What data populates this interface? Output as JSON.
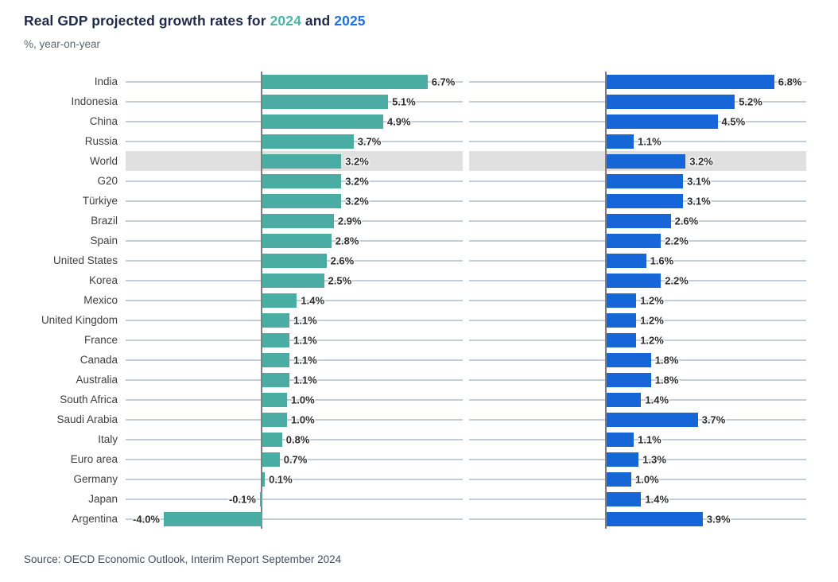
{
  "title": {
    "text_before": "Real GDP projected growth rates for ",
    "year_2024": "2024",
    "text_and": " and ",
    "year_2025": "2025"
  },
  "subtitle": "%, year-on-year",
  "source": "Source: OECD Economic Outlook, Interim Report September 2024",
  "colors": {
    "bar_2024_teal": "#4AACA2",
    "bar_2025_blue": "#1766D8",
    "title_navy": "#1E2A4A",
    "title_teal": "#4DB3A7",
    "title_blue": "#1F6FE2",
    "gridline": "#C5CED8",
    "axis": "#7E7E7E",
    "world_row_highlight": "#E0E0E0",
    "country_label": "#3F3F3F",
    "value_label": "#2E2E2E"
  },
  "chart_data": {
    "type": "bar",
    "orientation": "horizontal",
    "unit": "%",
    "value_suffix": "%",
    "grid": true,
    "legend": "none",
    "categories": [
      "India",
      "Indonesia",
      "China",
      "Russia",
      "World",
      "G20",
      "Türkiye",
      "Brazil",
      "Spain",
      "United States",
      "Korea",
      "Mexico",
      "United Kingdom",
      "France",
      "Canada",
      "Australia",
      "South Africa",
      "Saudi Arabia",
      "Italy",
      "Euro area",
      "Germany",
      "Japan",
      "Argentina"
    ],
    "series": [
      {
        "name": "2024",
        "color": "#4AACA2",
        "values": [
          6.7,
          5.1,
          4.9,
          3.7,
          3.2,
          3.2,
          3.2,
          2.9,
          2.8,
          2.6,
          2.5,
          1.4,
          1.1,
          1.1,
          1.1,
          1.1,
          1.0,
          1.0,
          0.8,
          0.7,
          0.1,
          -0.1,
          -4.0
        ]
      },
      {
        "name": "2025",
        "color": "#1766D8",
        "values": [
          6.8,
          5.2,
          4.5,
          1.1,
          3.2,
          3.1,
          3.1,
          2.6,
          2.2,
          1.6,
          2.2,
          1.2,
          1.2,
          1.2,
          1.8,
          1.8,
          1.4,
          3.7,
          1.1,
          1.3,
          1.0,
          1.4,
          3.9
        ]
      }
    ],
    "highlighted_category": "World"
  }
}
